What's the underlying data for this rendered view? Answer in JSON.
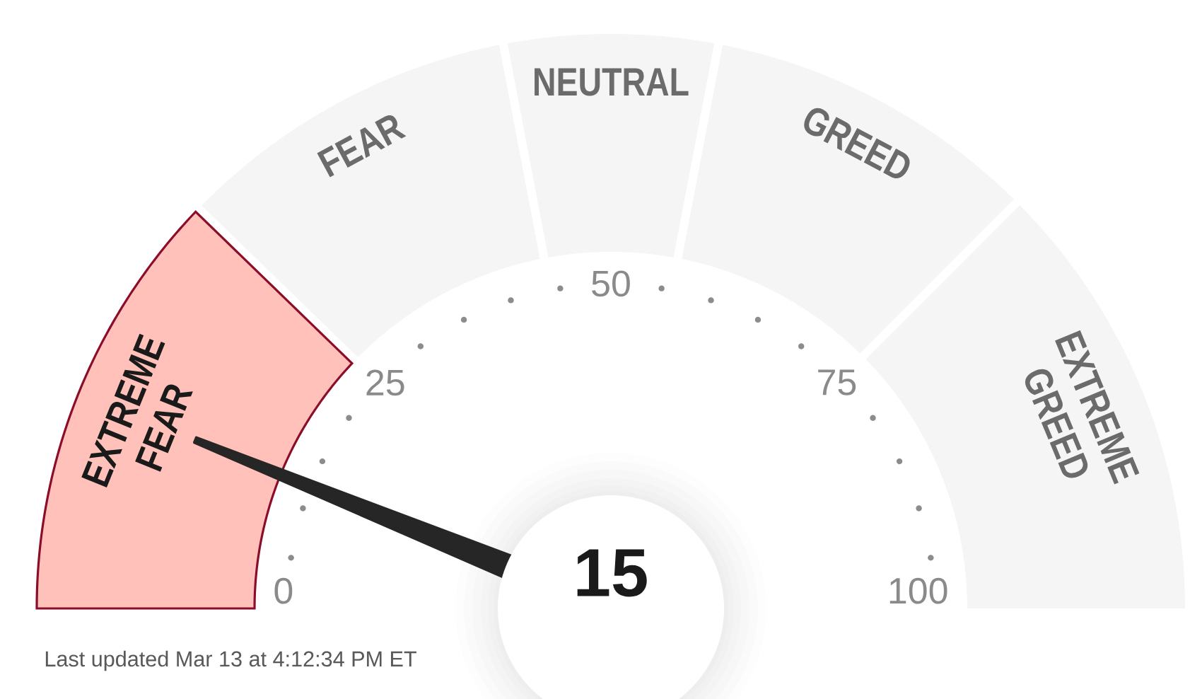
{
  "chart_data": {
    "type": "donut",
    "categories": [
      "EXTREME FEAR",
      "FEAR",
      "NEUTRAL",
      "GREED",
      "EXTREME GREED"
    ],
    "values": [
      24.5,
      19.5,
      12,
      19,
      25
    ],
    "colors": [
      "#ffc1b9",
      "#f5f5f5",
      "#f5f5f5",
      "#f5f5f5",
      "#f5f5f5"
    ],
    "needle": "EXTREME FEAR",
    "annotations": [
      "15",
      "0",
      "25",
      "50",
      "75",
      "100",
      "Last updated Mar 13 at 4:12:34 PM ET"
    ]
  }
}
